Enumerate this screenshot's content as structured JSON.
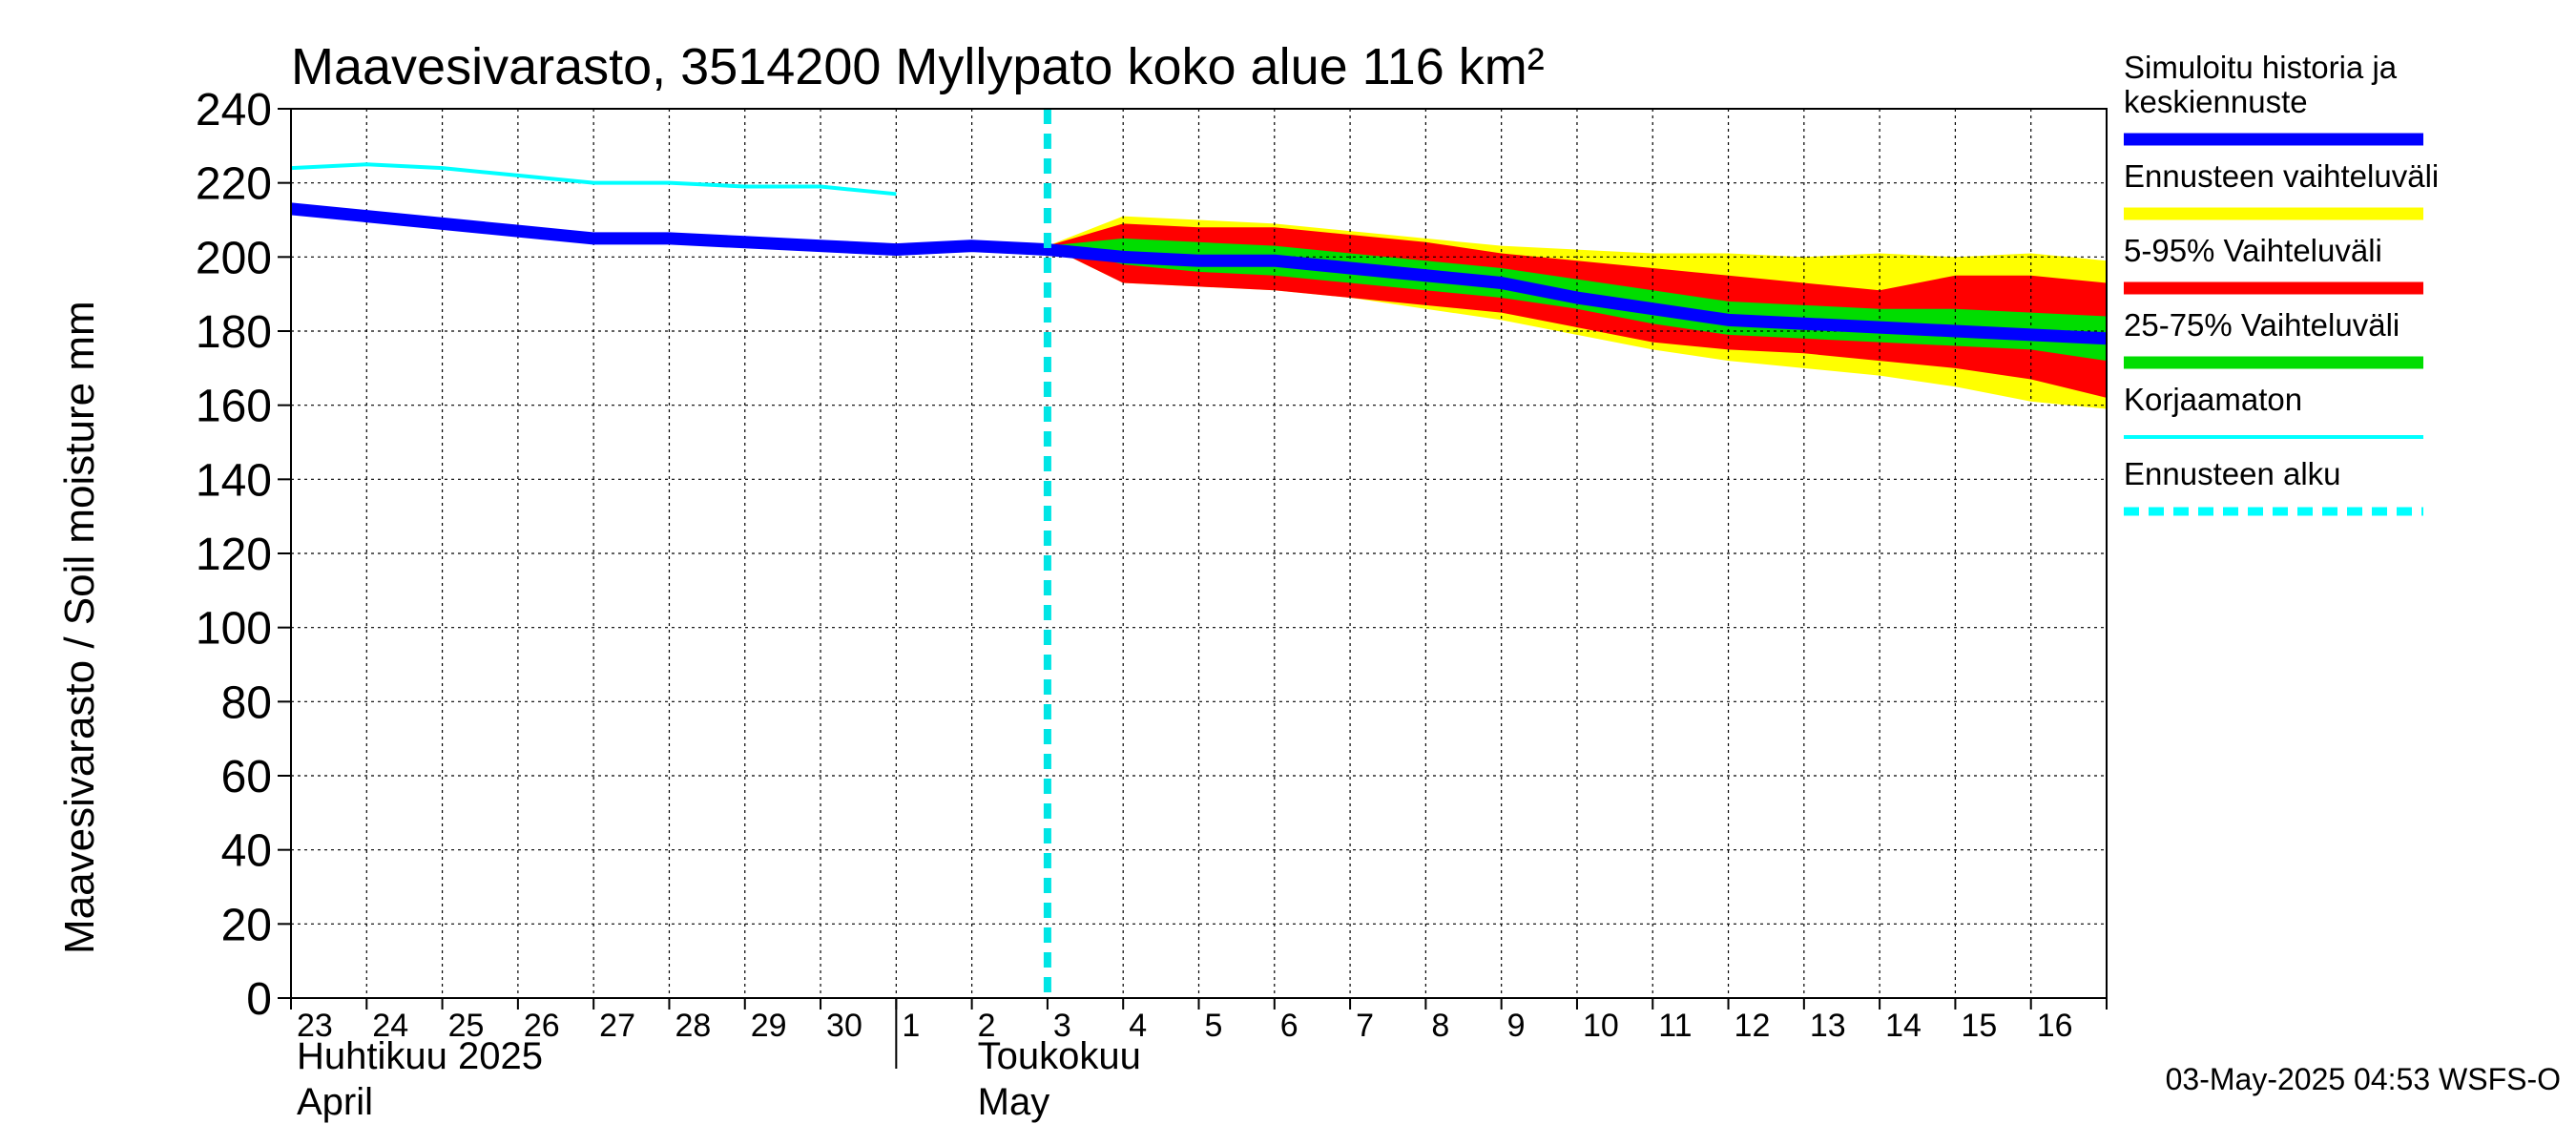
{
  "chart_data": {
    "type": "area",
    "title": "Maavesivarasto, 3514200 Myllypato koko alue 116 km²",
    "ylabel": "Maavesivarasto / Soil moisture   mm",
    "ylim": [
      0,
      240
    ],
    "yticks": [
      0,
      20,
      40,
      60,
      80,
      100,
      120,
      140,
      160,
      180,
      200,
      220,
      240
    ],
    "xlim": [
      0,
      24
    ],
    "day_labels": [
      "23",
      "24",
      "25",
      "26",
      "27",
      "28",
      "29",
      "30",
      "1",
      "2",
      "3",
      "4",
      "5",
      "6",
      "7",
      "8",
      "9",
      "10",
      "11",
      "12",
      "13",
      "14",
      "15",
      "16"
    ],
    "month_labels": [
      {
        "line1": "Huhtikuu  2025",
        "line2": "April",
        "x": 0
      },
      {
        "line1": "Toukokuu",
        "line2": "May",
        "x": 9
      }
    ],
    "month_divider_x": 8,
    "forecast_start_x": 10,
    "series": [
      {
        "name": "Ennusteen vaihteluväli",
        "kind": "band",
        "color": "#ffff00",
        "x": [
          10,
          11,
          12,
          13,
          14,
          15,
          16,
          17,
          18,
          19,
          20,
          21,
          22,
          23,
          24
        ],
        "upper": [
          203,
          211,
          210,
          209,
          207,
          205,
          203,
          202,
          201,
          201,
          200,
          201,
          200,
          201,
          199
        ],
        "lower": [
          203,
          193,
          192,
          191,
          189,
          186,
          183,
          179,
          175,
          172,
          170,
          168,
          165,
          161,
          159
        ]
      },
      {
        "name": "5-95% Vaihteluväli",
        "kind": "band",
        "color": "#ff0000",
        "x": [
          10,
          11,
          12,
          13,
          14,
          15,
          16,
          17,
          18,
          19,
          20,
          21,
          22,
          23,
          24
        ],
        "upper": [
          203,
          209,
          208,
          208,
          206,
          204,
          201,
          199,
          197,
          195,
          193,
          191,
          195,
          195,
          193
        ],
        "lower": [
          203,
          193,
          192,
          191,
          189,
          187,
          185,
          181,
          177,
          175,
          174,
          172,
          170,
          167,
          162
        ]
      },
      {
        "name": "25-75% Vaihteluväli",
        "kind": "band",
        "color": "#00dd00",
        "x": [
          10,
          11,
          12,
          13,
          14,
          15,
          16,
          17,
          18,
          19,
          20,
          21,
          22,
          23,
          24
        ],
        "upper": [
          203,
          205,
          204,
          203,
          201,
          199,
          197,
          194,
          191,
          188,
          187,
          186,
          186,
          185,
          184
        ],
        "lower": [
          203,
          198,
          196,
          195,
          193,
          191,
          189,
          186,
          182,
          179,
          178,
          177,
          176,
          175,
          172
        ]
      },
      {
        "name": "Korjaamaton",
        "kind": "line",
        "color": "#00ffff",
        "x": [
          0,
          1,
          2,
          3,
          4,
          5,
          6,
          7,
          8
        ],
        "values": [
          224,
          225,
          224,
          222,
          220,
          220,
          219,
          219,
          217
        ]
      },
      {
        "name": "Simuloitu historia ja keskiennuste",
        "kind": "line",
        "color": "#0000ff",
        "x": [
          0,
          1,
          2,
          3,
          4,
          5,
          6,
          7,
          8,
          9,
          10,
          11,
          12,
          13,
          14,
          15,
          16,
          17,
          18,
          19,
          20,
          21,
          22,
          23,
          24
        ],
        "values": [
          213,
          211,
          209,
          207,
          205,
          205,
          204,
          203,
          202,
          203,
          202,
          200,
          199,
          199,
          197,
          195,
          193,
          189,
          186,
          183,
          182,
          181,
          180,
          179,
          178
        ]
      }
    ],
    "legend": [
      {
        "label": "Simuloitu historia ja keskiennuste",
        "lines": [
          "Simuloitu historia ja",
          "keskiennuste"
        ],
        "color": "#0000ff",
        "style": "solid"
      },
      {
        "label": "Ennusteen vaihteluväli",
        "lines": [
          "Ennusteen vaihteluväli"
        ],
        "color": "#ffff00",
        "style": "solid"
      },
      {
        "label": "5-95% Vaihteluväli",
        "lines": [
          "5-95% Vaihteluväli"
        ],
        "color": "#ff0000",
        "style": "solid"
      },
      {
        "label": "25-75% Vaihteluväli",
        "lines": [
          "25-75% Vaihteluväli"
        ],
        "color": "#00dd00",
        "style": "solid"
      },
      {
        "label": "Korjaamaton",
        "lines": [
          "Korjaamaton"
        ],
        "color": "#00ffff",
        "style": "thin"
      },
      {
        "label": "Ennusteen alku",
        "lines": [
          "Ennusteen alku"
        ],
        "color": "#00ffff",
        "style": "dashed"
      }
    ],
    "legend_position": "right",
    "footer": "03-May-2025 04:53 WSFS-O"
  }
}
